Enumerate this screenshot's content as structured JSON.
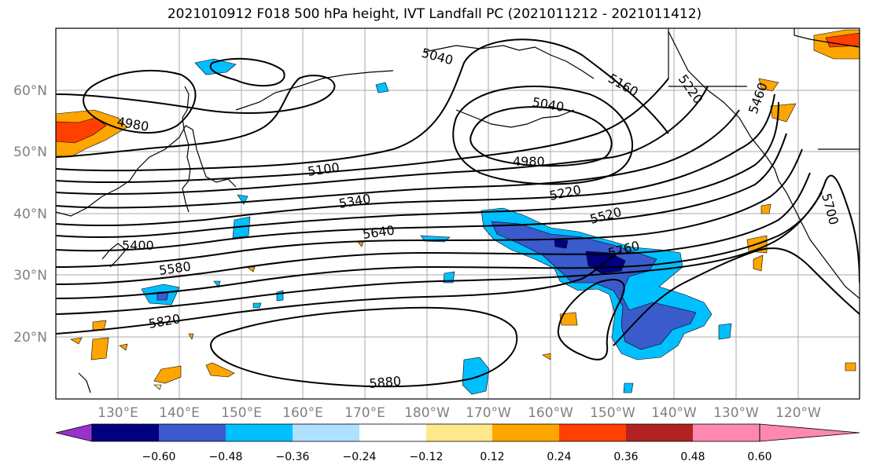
{
  "title": "2021010912 F018 500 hPa height, IVT Landfall PC (2021011212 - 2021011412)",
  "map": {
    "lat_labels": [
      "60°N",
      "50°N",
      "40°N",
      "30°N",
      "20°N"
    ],
    "lon_labels": [
      "130°E",
      "140°E",
      "150°E",
      "160°E",
      "170°E",
      "180°W",
      "170°W",
      "160°W",
      "150°W",
      "140°W",
      "130°W",
      "120°W"
    ],
    "contour_labels": [
      "5040",
      "5100",
      "4980",
      "5340",
      "5640",
      "5400",
      "5580",
      "5820",
      "5880",
      "5040",
      "4980",
      "5220",
      "5520",
      "5760",
      "5160",
      "5220",
      "5460",
      "5700"
    ]
  },
  "colorbar": {
    "ticks": [
      "−0.60",
      "−0.48",
      "−0.36",
      "−0.24",
      "−0.12",
      "0.12",
      "0.24",
      "0.36",
      "0.48",
      "0.60"
    ],
    "colors": [
      "#9932cc",
      "#000080",
      "#3a5bcc",
      "#00bfff",
      "#b0e0ff",
      "#ffffff",
      "#ffe88a",
      "#ffa500",
      "#ff4000",
      "#b22222",
      "#ff88b0"
    ]
  },
  "shading_colors": {
    "dark_navy": "#000080",
    "blue": "#3a5bcc",
    "deep_sky": "#00bfff",
    "light_blue": "#b0e0ff",
    "light_yellow": "#ffe88a",
    "orange": "#ffa500",
    "red_orange": "#ff4000"
  }
}
